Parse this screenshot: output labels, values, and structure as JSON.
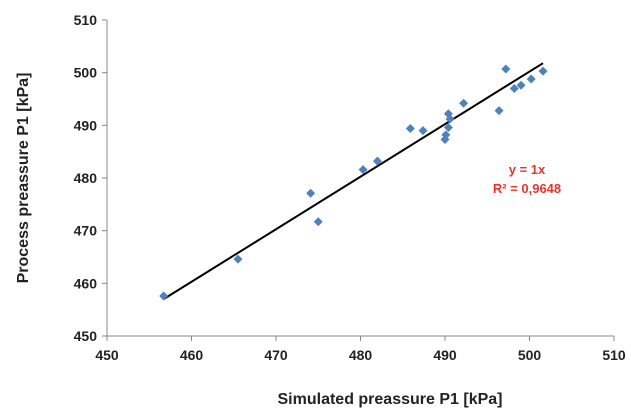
{
  "chart_data": {
    "type": "scatter",
    "xlabel": "Simulated preassure P1 [kPa]",
    "ylabel": "Process preassure P1 [kPa]",
    "xlim": [
      450,
      510
    ],
    "ylim": [
      450,
      510
    ],
    "x_ticks": [
      "450",
      "460",
      "470",
      "480",
      "490",
      "500",
      "510"
    ],
    "y_ticks": [
      "450",
      "460",
      "470",
      "480",
      "490",
      "500",
      "510"
    ],
    "grid": false,
    "legend": "none",
    "marker_color": "#4f81bd",
    "trendline_color": "#000000",
    "annotation_color": "#e8332b",
    "trendline": {
      "equation": "y = 1x",
      "r_squared": "R² = 0,9648",
      "start": [
        456.7,
        457
      ],
      "end": [
        501.6,
        501.8
      ]
    },
    "points": [
      {
        "x": 456.7,
        "y": 457.6
      },
      {
        "x": 465.5,
        "y": 464.6
      },
      {
        "x": 474.1,
        "y": 477.1
      },
      {
        "x": 475.0,
        "y": 471.7
      },
      {
        "x": 480.3,
        "y": 481.6
      },
      {
        "x": 482.0,
        "y": 483.2
      },
      {
        "x": 485.9,
        "y": 489.4
      },
      {
        "x": 487.4,
        "y": 489.0
      },
      {
        "x": 490.0,
        "y": 487.3
      },
      {
        "x": 490.1,
        "y": 488.2
      },
      {
        "x": 490.4,
        "y": 489.6
      },
      {
        "x": 490.4,
        "y": 492.2
      },
      {
        "x": 490.6,
        "y": 491.2
      },
      {
        "x": 492.2,
        "y": 494.2
      },
      {
        "x": 496.4,
        "y": 492.8
      },
      {
        "x": 497.2,
        "y": 500.7
      },
      {
        "x": 498.2,
        "y": 497.0
      },
      {
        "x": 499.0,
        "y": 497.6
      },
      {
        "x": 500.2,
        "y": 498.8
      },
      {
        "x": 501.6,
        "y": 500.3
      }
    ]
  }
}
